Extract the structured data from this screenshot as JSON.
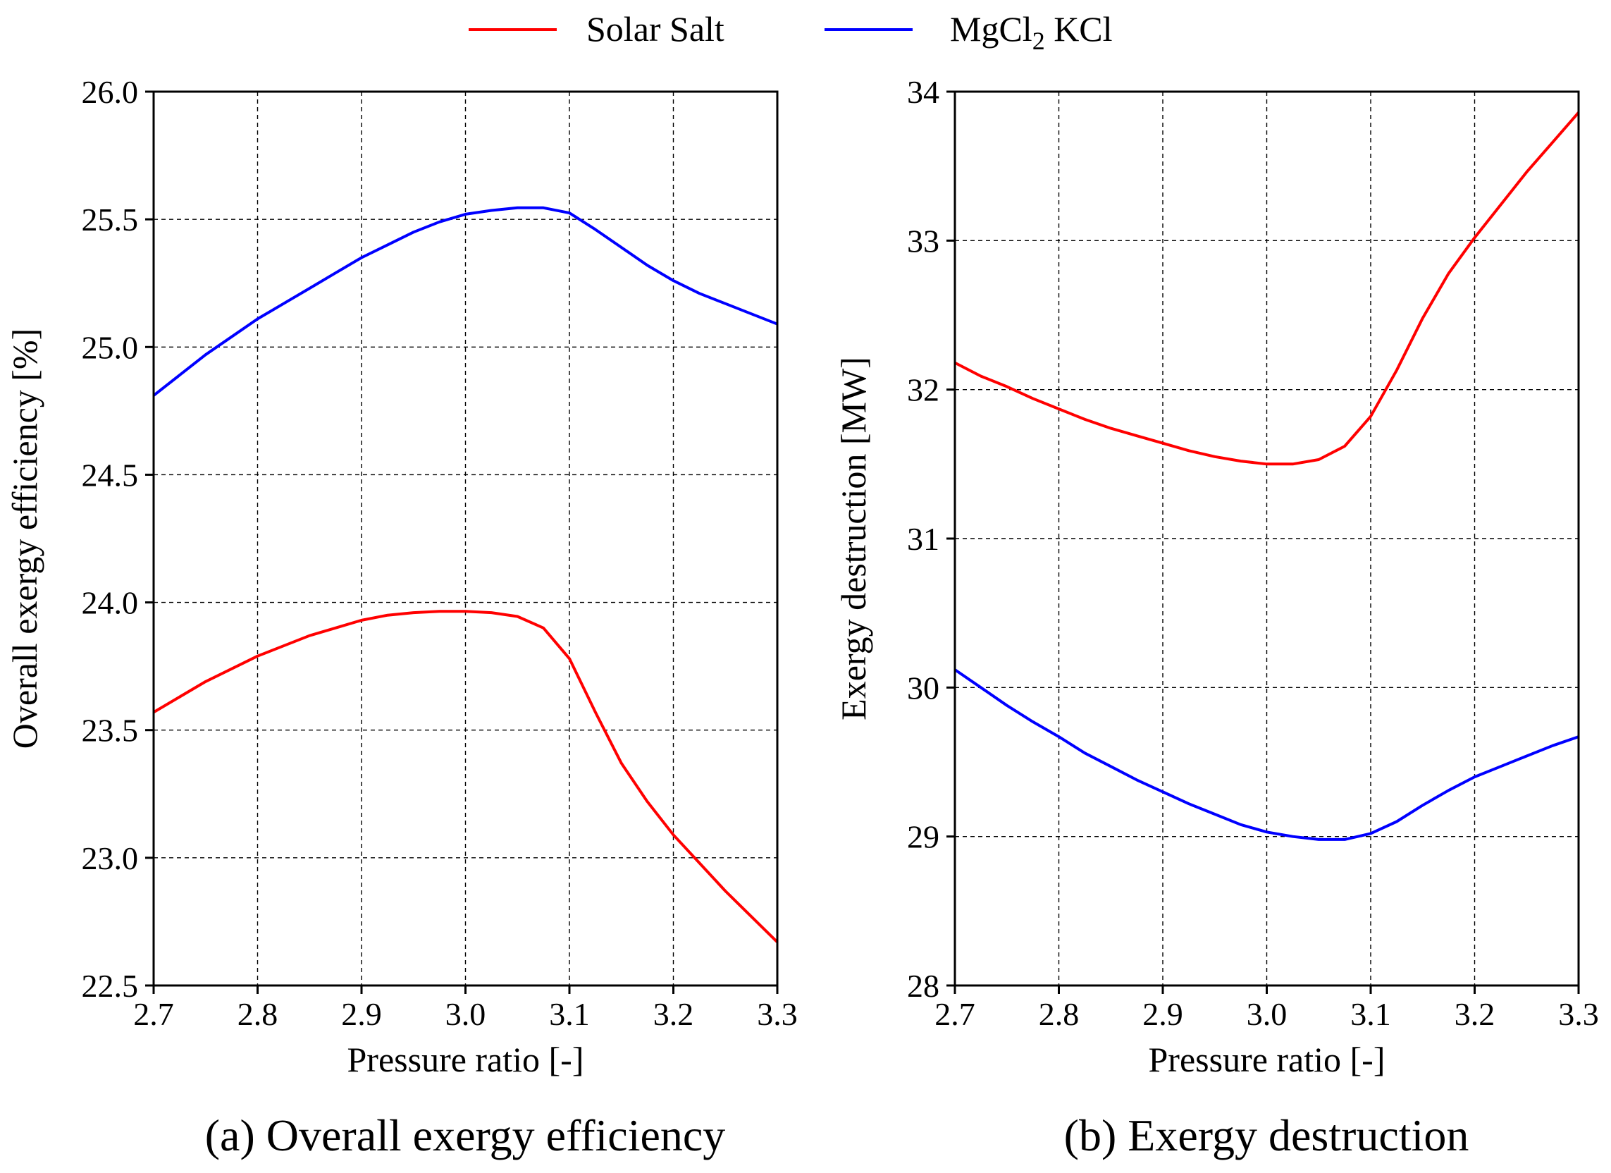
{
  "legend": {
    "items": [
      {
        "label": "Solar Salt",
        "color": "#ff0000"
      },
      {
        "label": "MgCl",
        "sub": "2",
        "suffix": " KCl",
        "color": "#0000ff"
      }
    ]
  },
  "chart_data": [
    {
      "type": "line",
      "title": "",
      "caption": "(a) Overall exergy efficiency",
      "xlabel": "Pressure ratio [-]",
      "ylabel": "Overall exergy efficiency [%]",
      "xlim": [
        2.7,
        3.3
      ],
      "ylim": [
        22.5,
        26.0
      ],
      "xticks": [
        "2.7",
        "2.8",
        "2.9",
        "3.0",
        "3.1",
        "3.2",
        "3.3"
      ],
      "yticks": [
        "22.5",
        "23.0",
        "23.5",
        "24.0",
        "24.5",
        "25.0",
        "25.5",
        "26.0"
      ],
      "grid": true,
      "series": [
        {
          "name": "Solar Salt",
          "color": "#ff0000",
          "x": [
            2.7,
            2.725,
            2.75,
            2.775,
            2.8,
            2.825,
            2.85,
            2.875,
            2.9,
            2.925,
            2.95,
            2.975,
            3.0,
            3.025,
            3.05,
            3.075,
            3.1,
            3.125,
            3.15,
            3.175,
            3.2,
            3.225,
            3.25,
            3.275,
            3.3
          ],
          "values": [
            23.57,
            23.63,
            23.69,
            23.74,
            23.79,
            23.83,
            23.87,
            23.9,
            23.93,
            23.95,
            23.96,
            23.965,
            23.965,
            23.96,
            23.945,
            23.9,
            23.78,
            23.57,
            23.37,
            23.22,
            23.09,
            22.98,
            22.87,
            22.77,
            22.67
          ]
        },
        {
          "name": "MgCl2 KCl",
          "color": "#0000ff",
          "x": [
            2.7,
            2.725,
            2.75,
            2.775,
            2.8,
            2.825,
            2.85,
            2.875,
            2.9,
            2.925,
            2.95,
            2.975,
            3.0,
            3.025,
            3.05,
            3.075,
            3.1,
            3.125,
            3.15,
            3.175,
            3.2,
            3.225,
            3.25,
            3.275,
            3.3
          ],
          "values": [
            24.81,
            24.89,
            24.97,
            25.04,
            25.11,
            25.17,
            25.23,
            25.29,
            25.35,
            25.4,
            25.45,
            25.49,
            25.52,
            25.535,
            25.545,
            25.545,
            25.525,
            25.46,
            25.39,
            25.32,
            25.26,
            25.21,
            25.17,
            25.13,
            25.09
          ]
        }
      ]
    },
    {
      "type": "line",
      "title": "",
      "caption": "(b) Exergy destruction",
      "xlabel": "Pressure ratio [-]",
      "ylabel": "Exergy destruction [MW]",
      "xlim": [
        2.7,
        3.3
      ],
      "ylim": [
        28,
        34
      ],
      "xticks": [
        "2.7",
        "2.8",
        "2.9",
        "3.0",
        "3.1",
        "3.2",
        "3.3"
      ],
      "yticks": [
        "28",
        "29",
        "30",
        "31",
        "32",
        "33",
        "34"
      ],
      "grid": true,
      "series": [
        {
          "name": "Solar Salt",
          "color": "#ff0000",
          "x": [
            2.7,
            2.725,
            2.75,
            2.775,
            2.8,
            2.825,
            2.85,
            2.875,
            2.9,
            2.925,
            2.95,
            2.975,
            3.0,
            3.025,
            3.05,
            3.075,
            3.1,
            3.125,
            3.15,
            3.175,
            3.2,
            3.225,
            3.25,
            3.275,
            3.3
          ],
          "values": [
            32.18,
            32.09,
            32.02,
            31.94,
            31.87,
            31.8,
            31.74,
            31.69,
            31.64,
            31.59,
            31.55,
            31.52,
            31.5,
            31.5,
            31.53,
            31.62,
            31.82,
            32.13,
            32.48,
            32.78,
            33.02,
            33.24,
            33.46,
            33.66,
            33.86
          ]
        },
        {
          "name": "MgCl2 KCl",
          "color": "#0000ff",
          "x": [
            2.7,
            2.725,
            2.75,
            2.775,
            2.8,
            2.825,
            2.85,
            2.875,
            2.9,
            2.925,
            2.95,
            2.975,
            3.0,
            3.025,
            3.05,
            3.075,
            3.1,
            3.125,
            3.15,
            3.175,
            3.2,
            3.225,
            3.25,
            3.275,
            3.3
          ],
          "values": [
            30.12,
            30.0,
            29.88,
            29.77,
            29.67,
            29.56,
            29.47,
            29.38,
            29.3,
            29.22,
            29.15,
            29.08,
            29.03,
            29.0,
            28.98,
            28.98,
            29.02,
            29.1,
            29.21,
            29.31,
            29.4,
            29.47,
            29.54,
            29.61,
            29.67
          ]
        }
      ]
    }
  ]
}
